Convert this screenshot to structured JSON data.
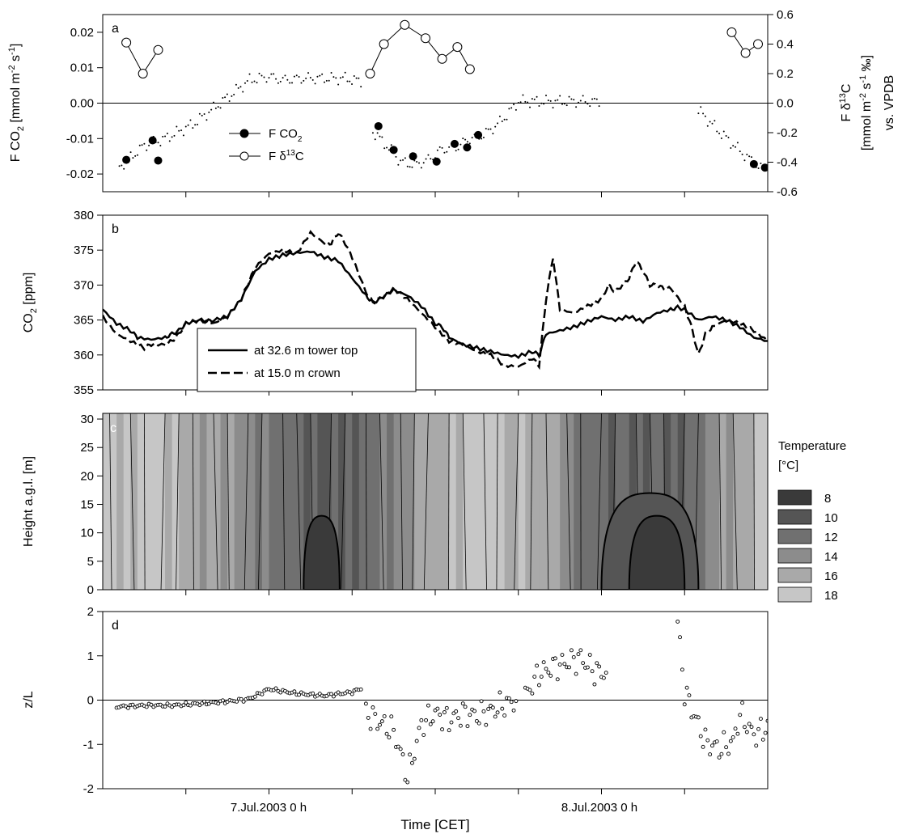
{
  "figure": {
    "x_title": "Time [CET]",
    "date_ticks": [
      "7.Jul.2003 0 h",
      "8.Jul.2003 0 h"
    ]
  },
  "colors": {
    "axis": "#000000",
    "legend_box": "#ffffff",
    "temp_fill": [
      "#3a3a3a",
      "#555555",
      "#707070",
      "#8c8c8c",
      "#a9a9a9",
      "#c6c6c6"
    ]
  },
  "chart_data": [
    {
      "panel": "a",
      "type": "scatter",
      "ylabel": "F CO2 [mmol m-2 s-1]",
      "y2label": "F δ13C [mmol m-2 s-1 ‰] vs. VPDB",
      "ylim": [
        -0.025,
        0.025
      ],
      "y2lim": [
        -0.6,
        0.6
      ],
      "yticks": [
        "-0.02",
        "-0.01",
        "0.00",
        "0.01",
        "0.02"
      ],
      "y2ticks": [
        "-0.6",
        "-0.4",
        "-0.2",
        "0.0",
        "0.2",
        "0.4",
        "0.6"
      ],
      "x_unit": "hours from 6 Jul 2003 12:00 CET",
      "xlim": [
        0,
        48
      ],
      "zero_line": true,
      "legend": [
        {
          "label": "F CO",
          "sub": "2",
          "sup": "",
          "tail": "",
          "marker": "filled"
        },
        {
          "label": "F δ",
          "sub": "",
          "sup": "13",
          "tail": "C",
          "marker": "open"
        }
      ],
      "series": [
        {
          "name": "F CO2",
          "marker": "filled",
          "x": [
            1.7,
            3.6,
            4.0,
            19.9,
            21.0,
            22.4,
            24.1,
            25.4,
            26.3,
            27.1,
            47.0,
            47.8,
            48.7
          ],
          "y": [
            -0.016,
            -0.0105,
            -0.0162,
            -0.0065,
            -0.0132,
            -0.015,
            -0.0165,
            -0.0115,
            -0.0125,
            -0.009,
            -0.0172,
            -0.0182,
            -0.016
          ]
        },
        {
          "name": "F δ13C",
          "marker": "open",
          "axis": "right",
          "x": [
            1.7,
            2.9,
            4.0,
            19.3,
            20.3,
            21.8,
            23.3,
            24.5,
            25.6,
            26.5,
            45.4,
            46.4,
            47.3
          ],
          "y": [
            0.41,
            0.2,
            0.36,
            0.2,
            0.4,
            0.53,
            0.44,
            0.3,
            0.38,
            0.23,
            0.48,
            0.34,
            0.4
          ]
        },
        {
          "name": "F CO2 10-min",
          "marker": "dot",
          "segments": [
            {
              "x": [
                1.2,
                3.0,
                4.5,
                6.5,
                8.5,
                10.6,
                12.0,
                13.0,
                14.5,
                16.0,
                17.5,
                18.8
              ],
              "y": [
                -0.018,
                -0.012,
                -0.01,
                -0.006,
                0.0,
                0.0065,
                0.0075,
                0.0065,
                0.007,
                0.007,
                0.007,
                0.006
              ]
            },
            {
              "x": [
                19.5,
                20.5,
                21.5,
                22.5,
                23.5,
                24.5,
                25.5,
                26.5,
                27.5,
                28.5,
                29.5,
                30.0,
                32.5,
                35.0,
                36.0
              ],
              "y": [
                -0.008,
                -0.012,
                -0.0165,
                -0.0175,
                -0.016,
                -0.013,
                -0.0125,
                -0.01,
                -0.009,
                -0.006,
                -0.002,
                0.0005,
                0.0005,
                0.0005,
                0.0003
              ]
            },
            {
              "x": [
                43.0,
                44.5,
                46.0,
                47.5,
                48.7
              ],
              "y": [
                -0.002,
                -0.008,
                -0.0135,
                -0.0185,
                -0.0155
              ]
            }
          ]
        }
      ]
    },
    {
      "panel": "b",
      "type": "line",
      "ylabel": "CO2 [ppm]",
      "ylim": [
        355,
        380
      ],
      "yticks": [
        "355",
        "360",
        "365",
        "370",
        "375",
        "380"
      ],
      "xlim": [
        0,
        48
      ],
      "legend": [
        {
          "label": "at 32.6 m tower top",
          "dash": "solid"
        },
        {
          "label": "at 15.0 m crown",
          "dash": "dashed"
        }
      ],
      "series": [
        {
          "name": "at 32.6 m tower top",
          "x": [
            0,
            1,
            2,
            2.5,
            3.5,
            4.5,
            5,
            5.5,
            6,
            7,
            7.5,
            8,
            9,
            10,
            11,
            12,
            13,
            14,
            15,
            16,
            17,
            18,
            19,
            19.5,
            20,
            21,
            22,
            23,
            24,
            24.5,
            25,
            26,
            27,
            28,
            29,
            30,
            31,
            31.5,
            32,
            33,
            34,
            35,
            36,
            37,
            38,
            39,
            40,
            41,
            41.5,
            42,
            43,
            44,
            45,
            46,
            47,
            48
          ],
          "y": [
            366.5,
            364.5,
            363.5,
            362.5,
            362.2,
            362.5,
            363,
            363.5,
            364.5,
            365,
            364.8,
            365,
            365.5,
            368,
            372,
            373.7,
            374.3,
            374.6,
            374.8,
            374,
            373.5,
            371,
            368.5,
            367.5,
            368,
            369.3,
            368.5,
            367,
            364.5,
            364,
            362.5,
            361.5,
            361,
            360.5,
            360,
            359.8,
            360.5,
            360,
            363,
            363.5,
            364,
            364.8,
            365.5,
            365,
            365.5,
            364.8,
            366,
            366.5,
            366.8,
            366.5,
            365,
            365.5,
            365,
            364,
            362.5,
            362
          ]
        },
        {
          "name": "at 15.0 m crown",
          "x": [
            0,
            1,
            2,
            3,
            3.5,
            4.5,
            5,
            5.5,
            6,
            7,
            8,
            9,
            10,
            11,
            12,
            13,
            14,
            15,
            16,
            16.5,
            17,
            17.5,
            18,
            19,
            19.5,
            20,
            21,
            22,
            23,
            24,
            25,
            26,
            27,
            28,
            29,
            30,
            31,
            31.5,
            32,
            32.5,
            33,
            34,
            35,
            36,
            36.5,
            37,
            37.5,
            38,
            38.5,
            39,
            39.5,
            40,
            40.5,
            41,
            42,
            42.5,
            43,
            43.5,
            44,
            45,
            46,
            47,
            48
          ],
          "y": [
            365.5,
            363,
            362,
            361,
            361.5,
            361.5,
            362,
            363,
            364.5,
            365,
            364.5,
            365.5,
            368,
            372.5,
            374.5,
            375,
            374.5,
            377.5,
            376,
            376,
            377.5,
            376,
            374,
            369,
            367.5,
            368,
            369.5,
            368,
            366,
            364,
            362,
            361.5,
            360.5,
            360,
            358.5,
            358.3,
            359.5,
            358.5,
            368,
            374,
            366.5,
            366,
            367,
            368,
            370,
            369,
            370,
            371,
            373.5,
            372,
            370,
            370,
            369.5,
            369.5,
            367,
            364,
            360,
            363,
            364,
            365,
            364.5,
            363.5,
            362
          ]
        }
      ]
    },
    {
      "panel": "c",
      "type": "heatmap",
      "ylabel": "Height a.g.l. [m]",
      "ylim": [
        0,
        31
      ],
      "yticks": [
        "0",
        "5",
        "10",
        "15",
        "20",
        "25",
        "30"
      ],
      "xlim": [
        0,
        48
      ],
      "colorbar": {
        "title": "Temperature",
        "unit": "[°C]",
        "levels": [
          "8",
          "10",
          "12",
          "14",
          "16",
          "18"
        ]
      },
      "temperature_by_hour": [
        17,
        16,
        17,
        18,
        18,
        17,
        16,
        15,
        15,
        16,
        14,
        13,
        12,
        12,
        11,
        11,
        11,
        11,
        11,
        12,
        13,
        14,
        15,
        16,
        16,
        17,
        17,
        18,
        18,
        17,
        17,
        16,
        16,
        15,
        13,
        12,
        12,
        11,
        11,
        11,
        11,
        11,
        12,
        13,
        14,
        15,
        16,
        17,
        18
      ],
      "cold_pools": [
        {
          "x_center": 15.8,
          "x_width": 2.6,
          "height_top": 13,
          "temp": 8
        },
        {
          "x_center": 39.5,
          "x_width": 7.0,
          "height_top": 17,
          "temp": 10
        },
        {
          "x_center": 40.0,
          "x_width": 4.0,
          "height_top": 13,
          "temp": 8
        }
      ]
    },
    {
      "panel": "d",
      "type": "scatter",
      "ylabel": "z/L",
      "ylim": [
        -2,
        2
      ],
      "yticks": [
        "-2",
        "-1",
        "0",
        "1",
        "2"
      ],
      "xlim": [
        0,
        48
      ],
      "zero_line": true,
      "series": [
        {
          "name": "z/L",
          "segments": [
            {
              "x": [
                1,
                3,
                5,
                7,
                9,
                10.5,
                12,
                14,
                16,
                18,
                18.8
              ],
              "y": [
                -0.15,
                -0.12,
                -0.12,
                -0.08,
                -0.03,
                0.02,
                0.25,
                0.15,
                0.1,
                0.18,
                0.28
              ]
            },
            {
              "x": [
                19.0,
                20.0,
                21.0,
                21.5,
                22.0,
                23.0,
                24.0,
                25.0,
                26.0,
                27.0,
                28.0,
                29.0,
                30.0
              ],
              "y": [
                -0.3,
                -0.5,
                -0.7,
                -1.2,
                -1.75,
                -0.55,
                -0.3,
                -0.45,
                -0.3,
                -0.35,
                -0.25,
                -0.1,
                0.0
              ]
            },
            {
              "x": [
                30.5,
                31.5,
                32.5,
                33.5,
                34.5,
                35.5,
                36.5
              ],
              "y": [
                0.1,
                0.6,
                0.75,
                0.85,
                0.95,
                0.65,
                0.6
              ]
            },
            {
              "x": [
                41.5,
                42.0,
                43.5,
                44.5,
                45.5,
                46.0,
                47.0,
                48.0,
                48.7
              ],
              "y": [
                1.75,
                0.2,
                -0.95,
                -1.1,
                -0.95,
                -0.3,
                -0.8,
                -0.6,
                -0.5
              ]
            }
          ]
        }
      ]
    }
  ]
}
